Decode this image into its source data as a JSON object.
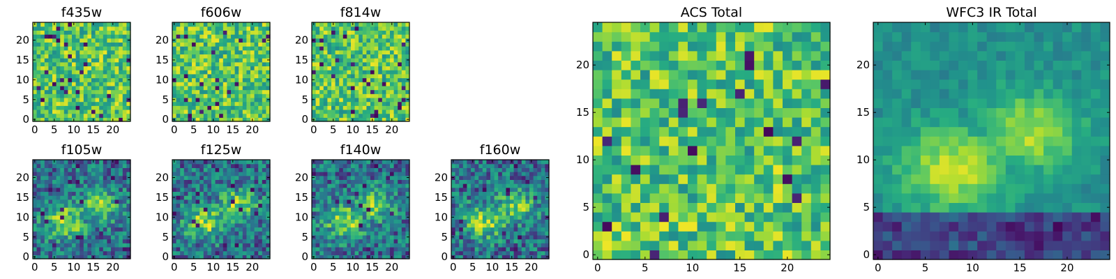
{
  "chart_data": [
    {
      "type": "heatmap",
      "title": "f435w",
      "xticks": [
        "0",
        "5",
        "10",
        "15",
        "20"
      ],
      "yticks": [
        "0",
        "5",
        "10",
        "15",
        "20"
      ],
      "xlim": [
        -0.5,
        24.5
      ],
      "ylim": [
        -0.5,
        24.5
      ],
      "grid": false,
      "colormap": "viridis",
      "pixels_per_side": 25,
      "seed": 11,
      "pattern": "noise",
      "outlier_rate": 0.035
    },
    {
      "type": "heatmap",
      "title": "f606w",
      "xticks": [
        "0",
        "5",
        "10",
        "15",
        "20"
      ],
      "yticks": [
        "0",
        "5",
        "10",
        "15",
        "20"
      ],
      "xlim": [
        -0.5,
        24.5
      ],
      "ylim": [
        -0.5,
        24.5
      ],
      "grid": false,
      "colormap": "viridis",
      "pixels_per_side": 25,
      "seed": 23,
      "pattern": "noise",
      "outlier_rate": 0.03
    },
    {
      "type": "heatmap",
      "title": "f814w",
      "xticks": [
        "0",
        "5",
        "10",
        "15",
        "20"
      ],
      "yticks": [
        "0",
        "5",
        "10",
        "15",
        "20"
      ],
      "xlim": [
        -0.5,
        24.5
      ],
      "ylim": [
        -0.5,
        24.5
      ],
      "grid": false,
      "colormap": "viridis",
      "pixels_per_side": 25,
      "seed": 37,
      "pattern": "noise",
      "outlier_rate": 0.035
    },
    {
      "type": "heatmap",
      "title": "f105w",
      "xticks": [
        "0",
        "5",
        "10",
        "15",
        "20"
      ],
      "yticks": [
        "0",
        "5",
        "10",
        "15",
        "20"
      ],
      "xlim": [
        -0.5,
        24.5
      ],
      "ylim": [
        -0.5,
        24.5
      ],
      "grid": false,
      "colormap": "viridis",
      "pixels_per_side": 25,
      "seed": 41,
      "pattern": "blob",
      "outlier_rate": 0.03
    },
    {
      "type": "heatmap",
      "title": "f125w",
      "xticks": [
        "0",
        "5",
        "10",
        "15",
        "20"
      ],
      "yticks": [
        "0",
        "5",
        "10",
        "15",
        "20"
      ],
      "xlim": [
        -0.5,
        24.5
      ],
      "ylim": [
        -0.5,
        24.5
      ],
      "grid": false,
      "colormap": "viridis",
      "pixels_per_side": 25,
      "seed": 53,
      "pattern": "blob",
      "outlier_rate": 0.03
    },
    {
      "type": "heatmap",
      "title": "f140w",
      "xticks": [
        "0",
        "5",
        "10",
        "15",
        "20"
      ],
      "yticks": [
        "0",
        "5",
        "10",
        "15",
        "20"
      ],
      "xlim": [
        -0.5,
        24.5
      ],
      "ylim": [
        -0.5,
        24.5
      ],
      "grid": false,
      "colormap": "viridis",
      "pixels_per_side": 25,
      "seed": 67,
      "pattern": "blob",
      "outlier_rate": 0.03
    },
    {
      "type": "heatmap",
      "title": "f160w",
      "xticks": [
        "0",
        "5",
        "10",
        "15",
        "20"
      ],
      "yticks": [
        "0",
        "5",
        "10",
        "15",
        "20"
      ],
      "xlim": [
        -0.5,
        24.5
      ],
      "ylim": [
        -0.5,
        24.5
      ],
      "grid": false,
      "colormap": "viridis",
      "pixels_per_side": 25,
      "seed": 79,
      "pattern": "blob",
      "outlier_rate": 0.03
    },
    {
      "type": "heatmap",
      "title": "ACS Total",
      "xticks": [
        "0",
        "5",
        "10",
        "15",
        "20"
      ],
      "yticks": [
        "0",
        "5",
        "10",
        "15",
        "20"
      ],
      "xlim": [
        -0.5,
        24.5
      ],
      "ylim": [
        -0.5,
        24.5
      ],
      "grid": false,
      "colormap": "viridis",
      "pixels_per_side": 25,
      "seed": 97,
      "pattern": "noise",
      "outlier_rate": 0.028
    },
    {
      "type": "heatmap",
      "title": "WFC3 IR Total",
      "xticks": [
        "0",
        "5",
        "10",
        "15",
        "20"
      ],
      "yticks": [
        "0",
        "5",
        "10",
        "15",
        "20"
      ],
      "xlim": [
        -0.5,
        24.5
      ],
      "ylim": [
        -0.5,
        24.5
      ],
      "grid": false,
      "colormap": "viridis",
      "pixels_per_side": 25,
      "seed": 101,
      "pattern": "smooth_blob",
      "outlier_rate": 0.0
    }
  ]
}
